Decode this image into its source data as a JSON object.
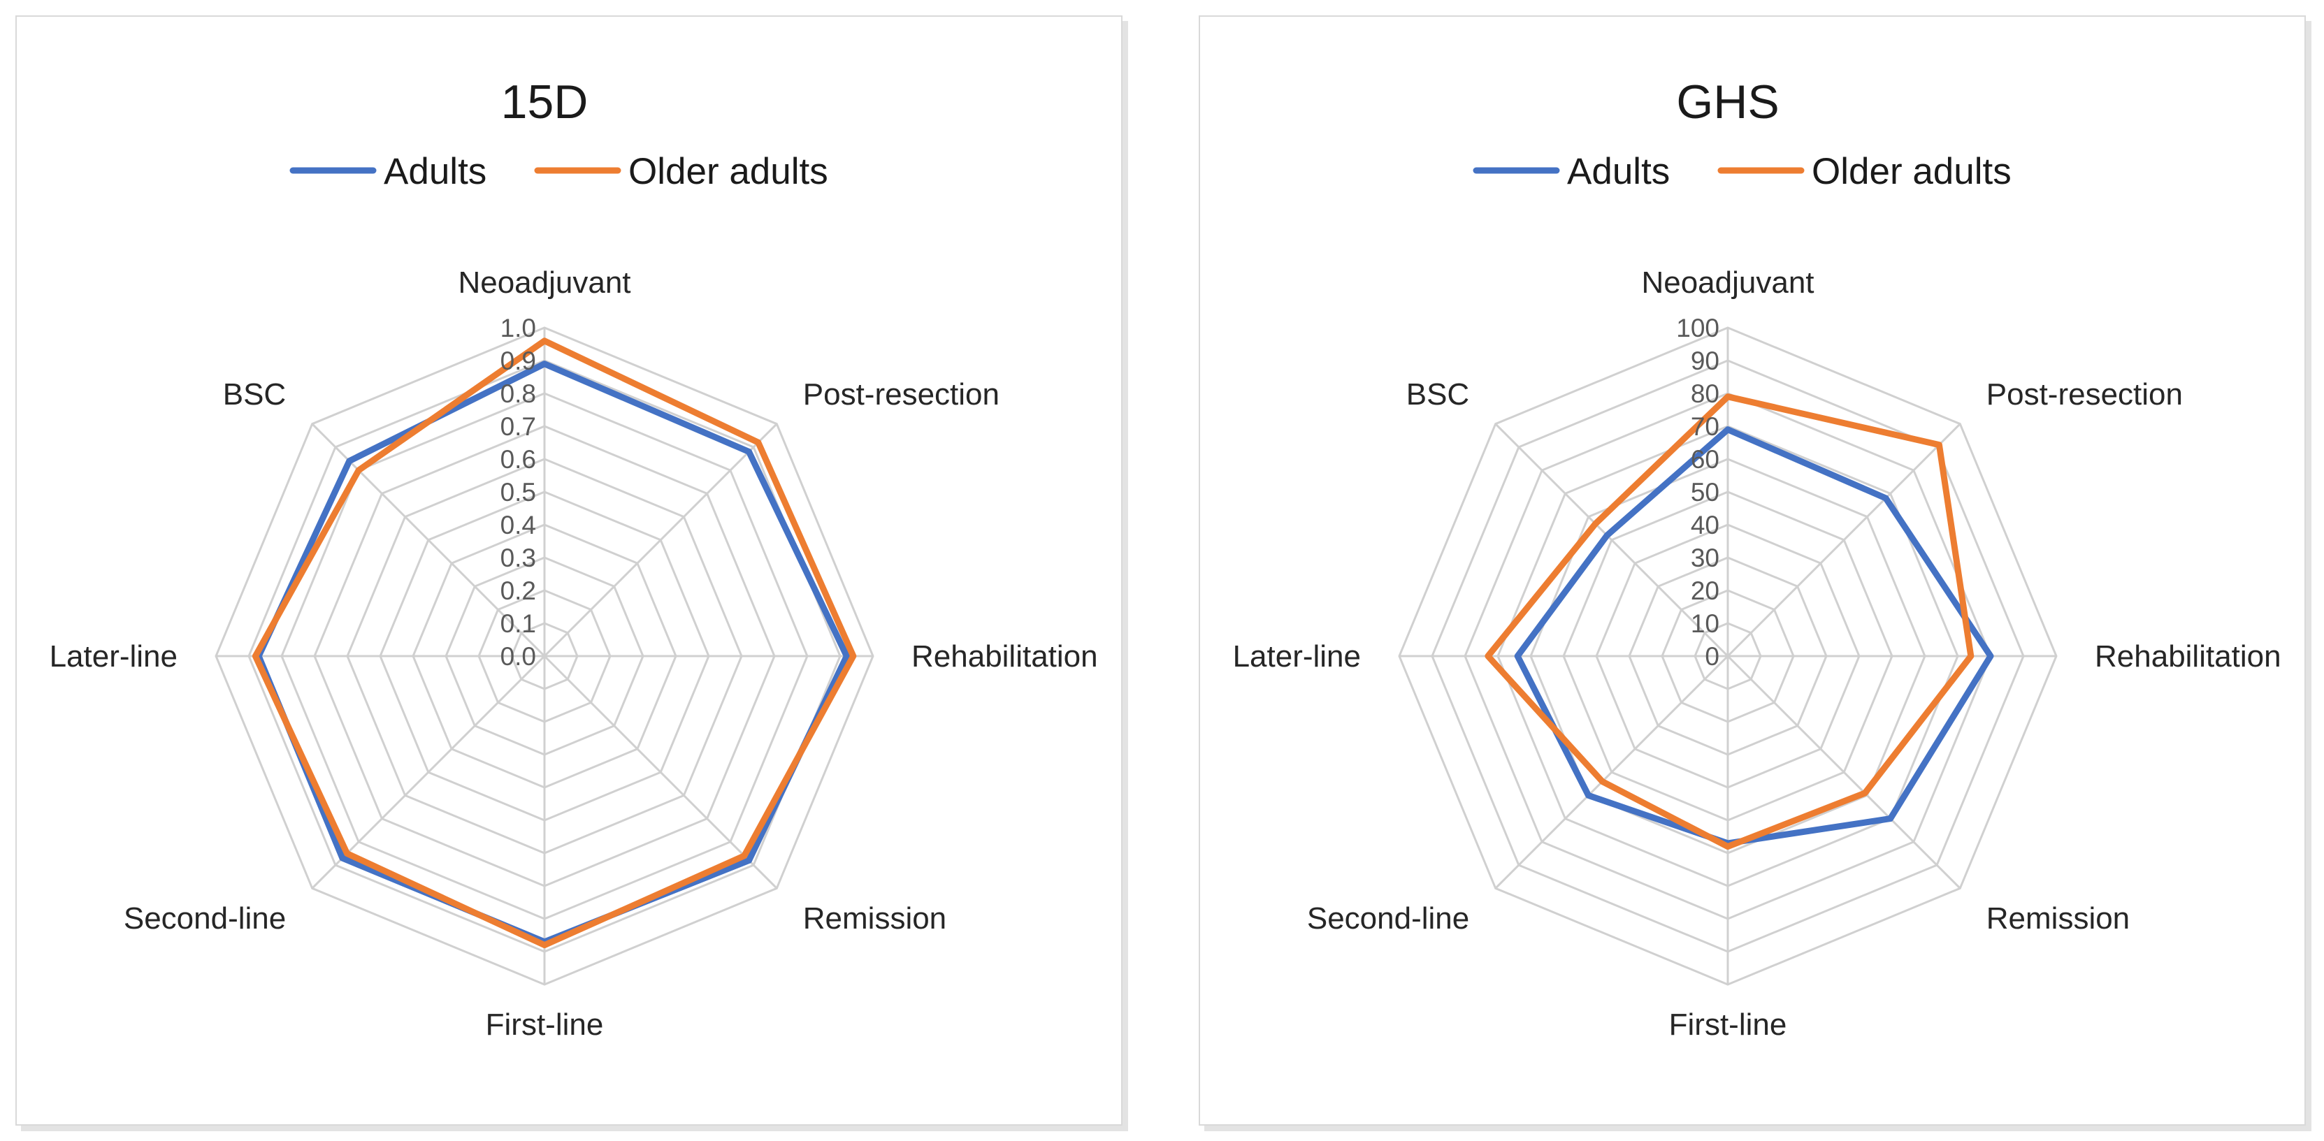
{
  "chart_data": [
    {
      "type": "radar",
      "title": "15D",
      "axes": [
        "Neoadjuvant",
        "Post-resection",
        "Rehabilitation",
        "Remission",
        "First-line",
        "Second-line",
        "Later-line",
        "BSC"
      ],
      "rlim": [
        0,
        1
      ],
      "ticks": [
        "0.0",
        "0.1",
        "0.2",
        "0.3",
        "0.4",
        "0.5",
        "0.6",
        "0.7",
        "0.8",
        "0.9",
        "1.0"
      ],
      "legend_position": "top",
      "series": [
        {
          "name": "Adults",
          "color": "#4472c4",
          "values": [
            0.89,
            0.88,
            0.92,
            0.88,
            0.87,
            0.87,
            0.87,
            0.84
          ]
        },
        {
          "name": "Older adults",
          "color": "#ed7d31",
          "values": [
            0.96,
            0.92,
            0.94,
            0.86,
            0.88,
            0.85,
            0.88,
            0.8
          ]
        }
      ]
    },
    {
      "type": "radar",
      "title": "GHS",
      "axes": [
        "Neoadjuvant",
        "Post-resection",
        "Rehabilitation",
        "Remission",
        "First-line",
        "Second-line",
        "Later-line",
        "BSC"
      ],
      "rlim": [
        0,
        100
      ],
      "ticks": [
        "0",
        "10",
        "20",
        "30",
        "40",
        "50",
        "60",
        "70",
        "80",
        "90",
        "100"
      ],
      "legend_position": "top",
      "series": [
        {
          "name": "Adults",
          "color": "#4472c4",
          "values": [
            69,
            68,
            80,
            70,
            57,
            60,
            64,
            52
          ]
        },
        {
          "name": "Older adults",
          "color": "#ed7d31",
          "values": [
            79,
            91,
            74,
            59,
            58,
            54,
            73,
            57
          ]
        }
      ]
    }
  ]
}
